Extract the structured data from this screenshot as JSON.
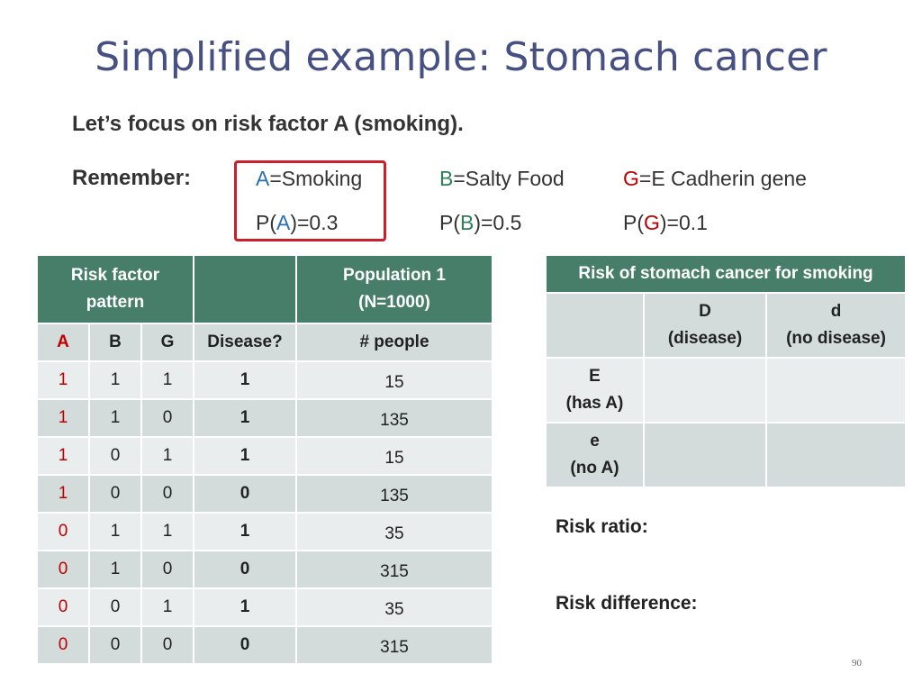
{
  "slide": {
    "title": "Simplified example: Stomach cancer",
    "focus": "Let’s focus on risk factor A (smoking).",
    "remember_label": "Remember:",
    "page_number": "90"
  },
  "factors": [
    {
      "letter": "A",
      "name": "=Smoking",
      "prob_prefix": "P(",
      "prob_suffix": ")=0.3",
      "color": "#2a6fb0"
    },
    {
      "letter": "B",
      "name": "=Salty Food",
      "prob_prefix": "P(",
      "prob_suffix": ")=0.5",
      "color": "#2f8057"
    },
    {
      "letter": "G",
      "name": "=E Cadherin gene",
      "prob_prefix": "P(",
      "prob_suffix": ")=0.1",
      "color": "#c00000"
    }
  ],
  "left_table": {
    "header_pattern": "Risk factor pattern",
    "header_population_line1": "Population 1",
    "header_population_line2": "(N=1000)",
    "columns": [
      "A",
      "B",
      "G",
      "Disease?",
      "# people"
    ],
    "rows": [
      [
        "1",
        "1",
        "1",
        "1",
        "15"
      ],
      [
        "1",
        "1",
        "0",
        "1",
        "135"
      ],
      [
        "1",
        "0",
        "1",
        "1",
        "15"
      ],
      [
        "1",
        "0",
        "0",
        "0",
        "135"
      ],
      [
        "0",
        "1",
        "1",
        "1",
        "35"
      ],
      [
        "0",
        "1",
        "0",
        "0",
        "315"
      ],
      [
        "0",
        "0",
        "1",
        "1",
        "35"
      ],
      [
        "0",
        "0",
        "0",
        "0",
        "315"
      ]
    ]
  },
  "right_table": {
    "title": "Risk of stomach cancer for smoking",
    "col_D_line1": "D",
    "col_D_line2": "(disease)",
    "col_d_line1": "d",
    "col_d_line2": "(no disease)",
    "row_E_line1": "E",
    "row_E_line2": "(has A)",
    "row_e_line1": "e",
    "row_e_line2": "(no A)"
  },
  "labels": {
    "risk_ratio": "Risk ratio:",
    "risk_difference": "Risk difference:"
  },
  "colors": {
    "title": "#465082",
    "header_bg": "#477e6a",
    "row_light": "#e9edee",
    "row_dark": "#d3dcdb",
    "highlight": "#cc1f2c"
  }
}
